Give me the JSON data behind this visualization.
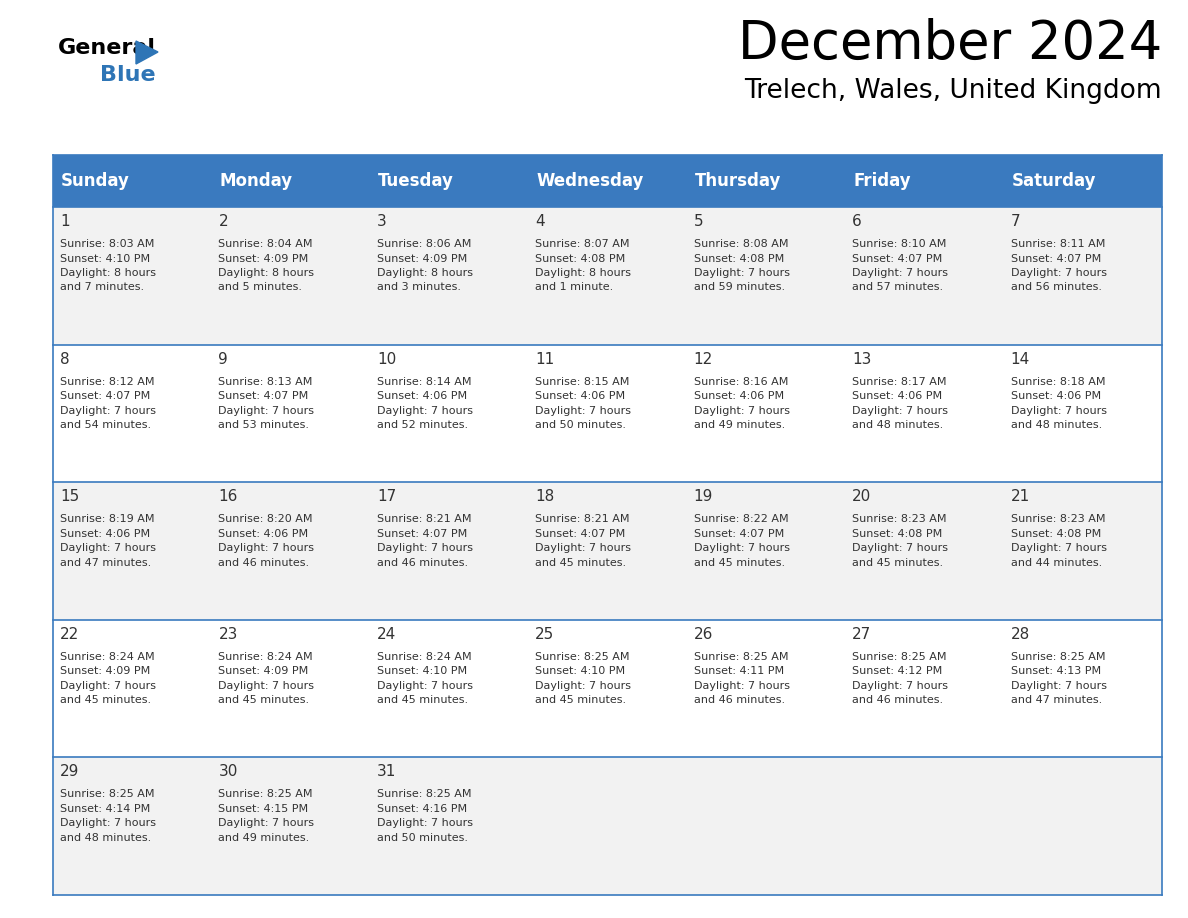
{
  "title": "December 2024",
  "subtitle": "Trelech, Wales, United Kingdom",
  "header_bg_color": "#3a7abf",
  "header_text_color": "#ffffff",
  "cell_bg_even": "#f2f2f2",
  "cell_bg_odd": "#ffffff",
  "grid_line_color": "#3a7abf",
  "text_color": "#333333",
  "day_names": [
    "Sunday",
    "Monday",
    "Tuesday",
    "Wednesday",
    "Thursday",
    "Friday",
    "Saturday"
  ],
  "title_fontsize": 38,
  "subtitle_fontsize": 19,
  "header_fontsize": 12,
  "day_num_fontsize": 11,
  "cell_fontsize": 8,
  "weeks": [
    [
      {
        "day": 1,
        "sunrise": "8:03 AM",
        "sunset": "4:10 PM",
        "daylight": "8 hours",
        "daylight2": "and 7 minutes."
      },
      {
        "day": 2,
        "sunrise": "8:04 AM",
        "sunset": "4:09 PM",
        "daylight": "8 hours",
        "daylight2": "and 5 minutes."
      },
      {
        "day": 3,
        "sunrise": "8:06 AM",
        "sunset": "4:09 PM",
        "daylight": "8 hours",
        "daylight2": "and 3 minutes."
      },
      {
        "day": 4,
        "sunrise": "8:07 AM",
        "sunset": "4:08 PM",
        "daylight": "8 hours",
        "daylight2": "and 1 minute."
      },
      {
        "day": 5,
        "sunrise": "8:08 AM",
        "sunset": "4:08 PM",
        "daylight": "7 hours",
        "daylight2": "and 59 minutes."
      },
      {
        "day": 6,
        "sunrise": "8:10 AM",
        "sunset": "4:07 PM",
        "daylight": "7 hours",
        "daylight2": "and 57 minutes."
      },
      {
        "day": 7,
        "sunrise": "8:11 AM",
        "sunset": "4:07 PM",
        "daylight": "7 hours",
        "daylight2": "and 56 minutes."
      }
    ],
    [
      {
        "day": 8,
        "sunrise": "8:12 AM",
        "sunset": "4:07 PM",
        "daylight": "7 hours",
        "daylight2": "and 54 minutes."
      },
      {
        "day": 9,
        "sunrise": "8:13 AM",
        "sunset": "4:07 PM",
        "daylight": "7 hours",
        "daylight2": "and 53 minutes."
      },
      {
        "day": 10,
        "sunrise": "8:14 AM",
        "sunset": "4:06 PM",
        "daylight": "7 hours",
        "daylight2": "and 52 minutes."
      },
      {
        "day": 11,
        "sunrise": "8:15 AM",
        "sunset": "4:06 PM",
        "daylight": "7 hours",
        "daylight2": "and 50 minutes."
      },
      {
        "day": 12,
        "sunrise": "8:16 AM",
        "sunset": "4:06 PM",
        "daylight": "7 hours",
        "daylight2": "and 49 minutes."
      },
      {
        "day": 13,
        "sunrise": "8:17 AM",
        "sunset": "4:06 PM",
        "daylight": "7 hours",
        "daylight2": "and 48 minutes."
      },
      {
        "day": 14,
        "sunrise": "8:18 AM",
        "sunset": "4:06 PM",
        "daylight": "7 hours",
        "daylight2": "and 48 minutes."
      }
    ],
    [
      {
        "day": 15,
        "sunrise": "8:19 AM",
        "sunset": "4:06 PM",
        "daylight": "7 hours",
        "daylight2": "and 47 minutes."
      },
      {
        "day": 16,
        "sunrise": "8:20 AM",
        "sunset": "4:06 PM",
        "daylight": "7 hours",
        "daylight2": "and 46 minutes."
      },
      {
        "day": 17,
        "sunrise": "8:21 AM",
        "sunset": "4:07 PM",
        "daylight": "7 hours",
        "daylight2": "and 46 minutes."
      },
      {
        "day": 18,
        "sunrise": "8:21 AM",
        "sunset": "4:07 PM",
        "daylight": "7 hours",
        "daylight2": "and 45 minutes."
      },
      {
        "day": 19,
        "sunrise": "8:22 AM",
        "sunset": "4:07 PM",
        "daylight": "7 hours",
        "daylight2": "and 45 minutes."
      },
      {
        "day": 20,
        "sunrise": "8:23 AM",
        "sunset": "4:08 PM",
        "daylight": "7 hours",
        "daylight2": "and 45 minutes."
      },
      {
        "day": 21,
        "sunrise": "8:23 AM",
        "sunset": "4:08 PM",
        "daylight": "7 hours",
        "daylight2": "and 44 minutes."
      }
    ],
    [
      {
        "day": 22,
        "sunrise": "8:24 AM",
        "sunset": "4:09 PM",
        "daylight": "7 hours",
        "daylight2": "and 45 minutes."
      },
      {
        "day": 23,
        "sunrise": "8:24 AM",
        "sunset": "4:09 PM",
        "daylight": "7 hours",
        "daylight2": "and 45 minutes."
      },
      {
        "day": 24,
        "sunrise": "8:24 AM",
        "sunset": "4:10 PM",
        "daylight": "7 hours",
        "daylight2": "and 45 minutes."
      },
      {
        "day": 25,
        "sunrise": "8:25 AM",
        "sunset": "4:10 PM",
        "daylight": "7 hours",
        "daylight2": "and 45 minutes."
      },
      {
        "day": 26,
        "sunrise": "8:25 AM",
        "sunset": "4:11 PM",
        "daylight": "7 hours",
        "daylight2": "and 46 minutes."
      },
      {
        "day": 27,
        "sunrise": "8:25 AM",
        "sunset": "4:12 PM",
        "daylight": "7 hours",
        "daylight2": "and 46 minutes."
      },
      {
        "day": 28,
        "sunrise": "8:25 AM",
        "sunset": "4:13 PM",
        "daylight": "7 hours",
        "daylight2": "and 47 minutes."
      }
    ],
    [
      {
        "day": 29,
        "sunrise": "8:25 AM",
        "sunset": "4:14 PM",
        "daylight": "7 hours",
        "daylight2": "and 48 minutes."
      },
      {
        "day": 30,
        "sunrise": "8:25 AM",
        "sunset": "4:15 PM",
        "daylight": "7 hours",
        "daylight2": "and 49 minutes."
      },
      {
        "day": 31,
        "sunrise": "8:25 AM",
        "sunset": "4:16 PM",
        "daylight": "7 hours",
        "daylight2": "and 50 minutes."
      },
      null,
      null,
      null,
      null
    ]
  ]
}
